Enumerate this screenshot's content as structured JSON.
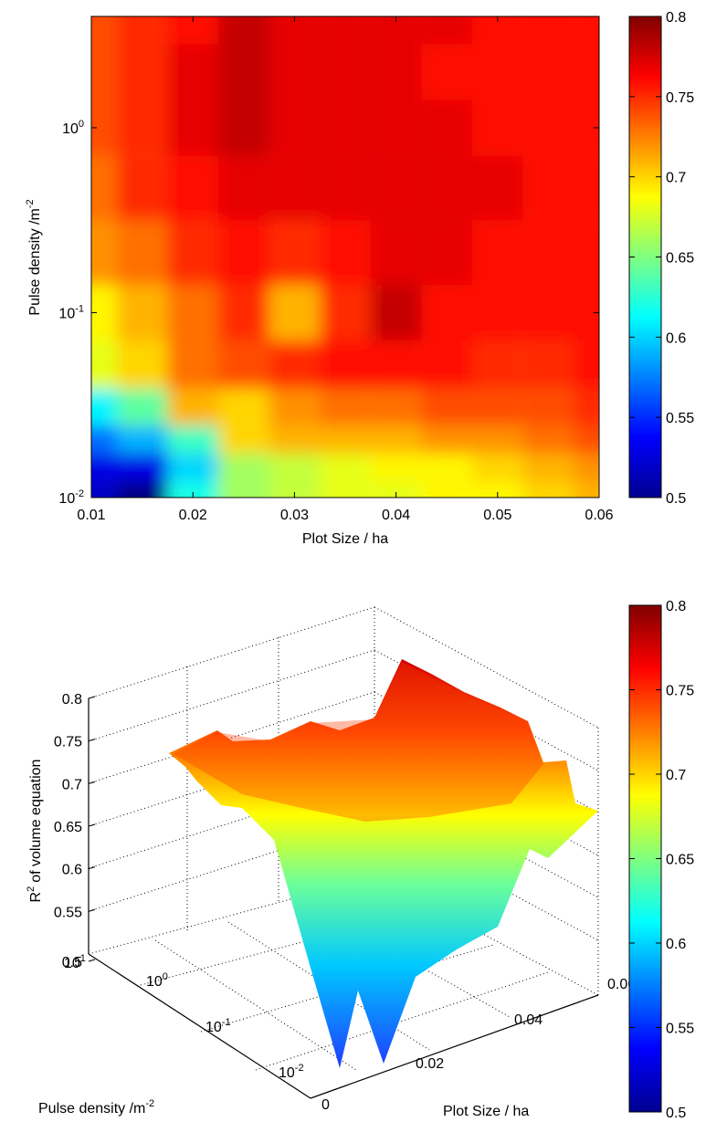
{
  "chart_data": [
    {
      "type": "heatmap",
      "xlabel": "Plot Size / ha",
      "ylabel_main": "Pulse density /m",
      "ylabel_sup": "-2",
      "x_ticks": [
        "0.01",
        "0.02",
        "0.03",
        "0.04",
        "0.05",
        "0.06"
      ],
      "x_values": [
        0.01,
        0.02,
        0.03,
        0.04,
        0.05,
        0.06
      ],
      "y_scale": "log",
      "y_ticks": [
        {
          "value": 0.01,
          "base": "10",
          "exp": "-2"
        },
        {
          "value": 0.1,
          "base": "10",
          "exp": "-1"
        },
        {
          "value": 1,
          "base": "10",
          "exp": "0"
        }
      ],
      "xlim": [
        0.01,
        0.06
      ],
      "ylim": [
        0.01,
        4
      ],
      "colormap": "jet",
      "clim": [
        0.5,
        0.8
      ],
      "colorbar_ticks": [
        "0.5",
        "0.55",
        "0.6",
        "0.65",
        "0.7",
        "0.75",
        "0.8"
      ],
      "colorbar_placement": "right",
      "grid_x": [
        0.01,
        0.015,
        0.02,
        0.025,
        0.03,
        0.035,
        0.04,
        0.045,
        0.05,
        0.055,
        0.06
      ],
      "grid_y": [
        0.01,
        0.015,
        0.02,
        0.03,
        0.05,
        0.1,
        0.2,
        0.5,
        1,
        2,
        4
      ],
      "z": [
        [
          0.52,
          0.5,
          0.62,
          0.66,
          0.67,
          0.68,
          0.68,
          0.69,
          0.69,
          0.7,
          0.71
        ],
        [
          0.53,
          0.53,
          0.6,
          0.66,
          0.67,
          0.68,
          0.69,
          0.69,
          0.7,
          0.71,
          0.72
        ],
        [
          0.57,
          0.59,
          0.63,
          0.7,
          0.71,
          0.71,
          0.71,
          0.72,
          0.72,
          0.73,
          0.74
        ],
        [
          0.61,
          0.64,
          0.71,
          0.7,
          0.72,
          0.73,
          0.73,
          0.74,
          0.74,
          0.74,
          0.75
        ],
        [
          0.68,
          0.7,
          0.73,
          0.74,
          0.75,
          0.76,
          0.76,
          0.76,
          0.75,
          0.75,
          0.76
        ],
        [
          0.69,
          0.71,
          0.73,
          0.75,
          0.71,
          0.75,
          0.78,
          0.76,
          0.76,
          0.76,
          0.76
        ],
        [
          0.72,
          0.73,
          0.75,
          0.76,
          0.75,
          0.76,
          0.77,
          0.77,
          0.76,
          0.76,
          0.76
        ],
        [
          0.73,
          0.75,
          0.76,
          0.77,
          0.77,
          0.77,
          0.77,
          0.77,
          0.77,
          0.76,
          0.76
        ],
        [
          0.74,
          0.75,
          0.77,
          0.78,
          0.77,
          0.77,
          0.77,
          0.77,
          0.76,
          0.76,
          0.76
        ],
        [
          0.74,
          0.75,
          0.77,
          0.78,
          0.77,
          0.77,
          0.77,
          0.76,
          0.76,
          0.76,
          0.76
        ],
        [
          0.74,
          0.75,
          0.76,
          0.78,
          0.77,
          0.77,
          0.77,
          0.77,
          0.76,
          0.76,
          0.76
        ]
      ]
    },
    {
      "type": "surface",
      "zlabel_main": "of volume equation",
      "zlabel_base": "R",
      "zlabel_sup": "2",
      "xlabel": "Plot Size / ha",
      "ylabel_main": "Pulse density /m",
      "ylabel_sup": "-2",
      "z_ticks": [
        "0.5",
        "0.55",
        "0.6",
        "0.65",
        "0.7",
        "0.75",
        "0.8"
      ],
      "z_values": [
        0.5,
        0.55,
        0.6,
        0.65,
        0.7,
        0.75,
        0.8
      ],
      "x_ticks": [
        "0",
        "0.02",
        "0.04",
        "0.06"
      ],
      "y_ticks": [
        {
          "value": 0.01,
          "base": "10",
          "exp": "-2"
        },
        {
          "value": 0.1,
          "base": "10",
          "exp": "-1"
        },
        {
          "value": 1,
          "base": "10",
          "exp": "0"
        },
        {
          "value": 10,
          "base": "10",
          "exp": "1"
        }
      ],
      "zlim": [
        0.5,
        0.8
      ],
      "colormap": "jet",
      "clim": [
        0.5,
        0.8
      ],
      "colorbar_ticks": [
        "0.5",
        "0.55",
        "0.6",
        "0.65",
        "0.7",
        "0.75",
        "0.8"
      ],
      "colorbar_placement": "right",
      "grid": "on"
    }
  ]
}
